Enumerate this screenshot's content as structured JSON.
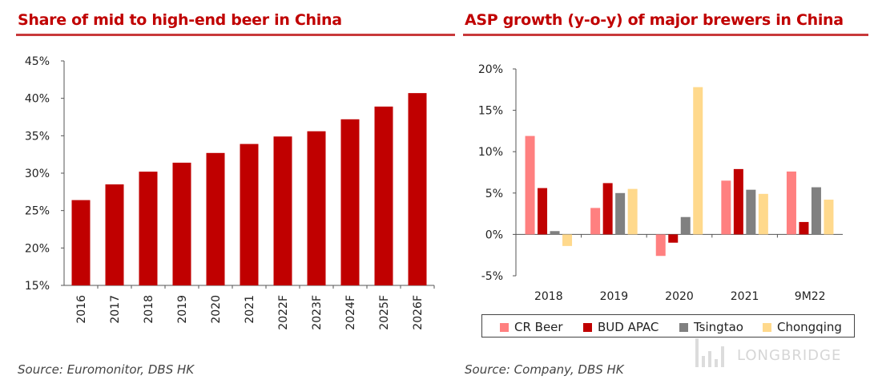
{
  "left": {
    "title": "Share of mid to high-end beer in China",
    "source": "Source: Euromonitor, DBS HK"
  },
  "right": {
    "title": "ASP growth (y-o-y) of major brewers in China",
    "source": "Source: Company, DBS HK"
  },
  "watermark": "LONGBRIDGE",
  "chart_data": [
    {
      "type": "bar",
      "title": "Share of mid to high-end beer in China",
      "categories": [
        "2016",
        "2017",
        "2018",
        "2019",
        "2020",
        "2021",
        "2022F",
        "2023F",
        "2024F",
        "2025F",
        "2026F"
      ],
      "values": [
        26.4,
        28.5,
        30.2,
        31.4,
        32.7,
        33.9,
        34.9,
        35.6,
        37.2,
        38.9,
        40.7
      ],
      "yticks": [
        "15%",
        "20%",
        "25%",
        "30%",
        "35%",
        "40%",
        "45%"
      ],
      "ylim": [
        15,
        45
      ],
      "color": "#c00000",
      "xlabel": "",
      "ylabel": ""
    },
    {
      "type": "bar",
      "title": "ASP growth (y-o-y) of major brewers in China",
      "categories": [
        "2018",
        "2019",
        "2020",
        "2021",
        "9M22"
      ],
      "series": [
        {
          "name": "CR Beer",
          "color": "#ff8080",
          "values": [
            11.9,
            3.2,
            -2.6,
            6.5,
            7.6
          ]
        },
        {
          "name": "BUD APAC",
          "color": "#c00000",
          "values": [
            5.6,
            6.2,
            -1.0,
            7.9,
            1.5
          ]
        },
        {
          "name": "Tsingtao",
          "color": "#808080",
          "values": [
            0.4,
            5.0,
            2.1,
            5.4,
            5.7
          ]
        },
        {
          "name": "Chongqing",
          "color": "#ffd98c",
          "values": [
            -1.4,
            5.5,
            17.8,
            4.9,
            4.2
          ]
        }
      ],
      "yticks": [
        "-5%",
        "0%",
        "5%",
        "10%",
        "15%",
        "20%"
      ],
      "ylim": [
        -5,
        20
      ],
      "legend": "bottom",
      "xlabel": "",
      "ylabel": ""
    }
  ]
}
